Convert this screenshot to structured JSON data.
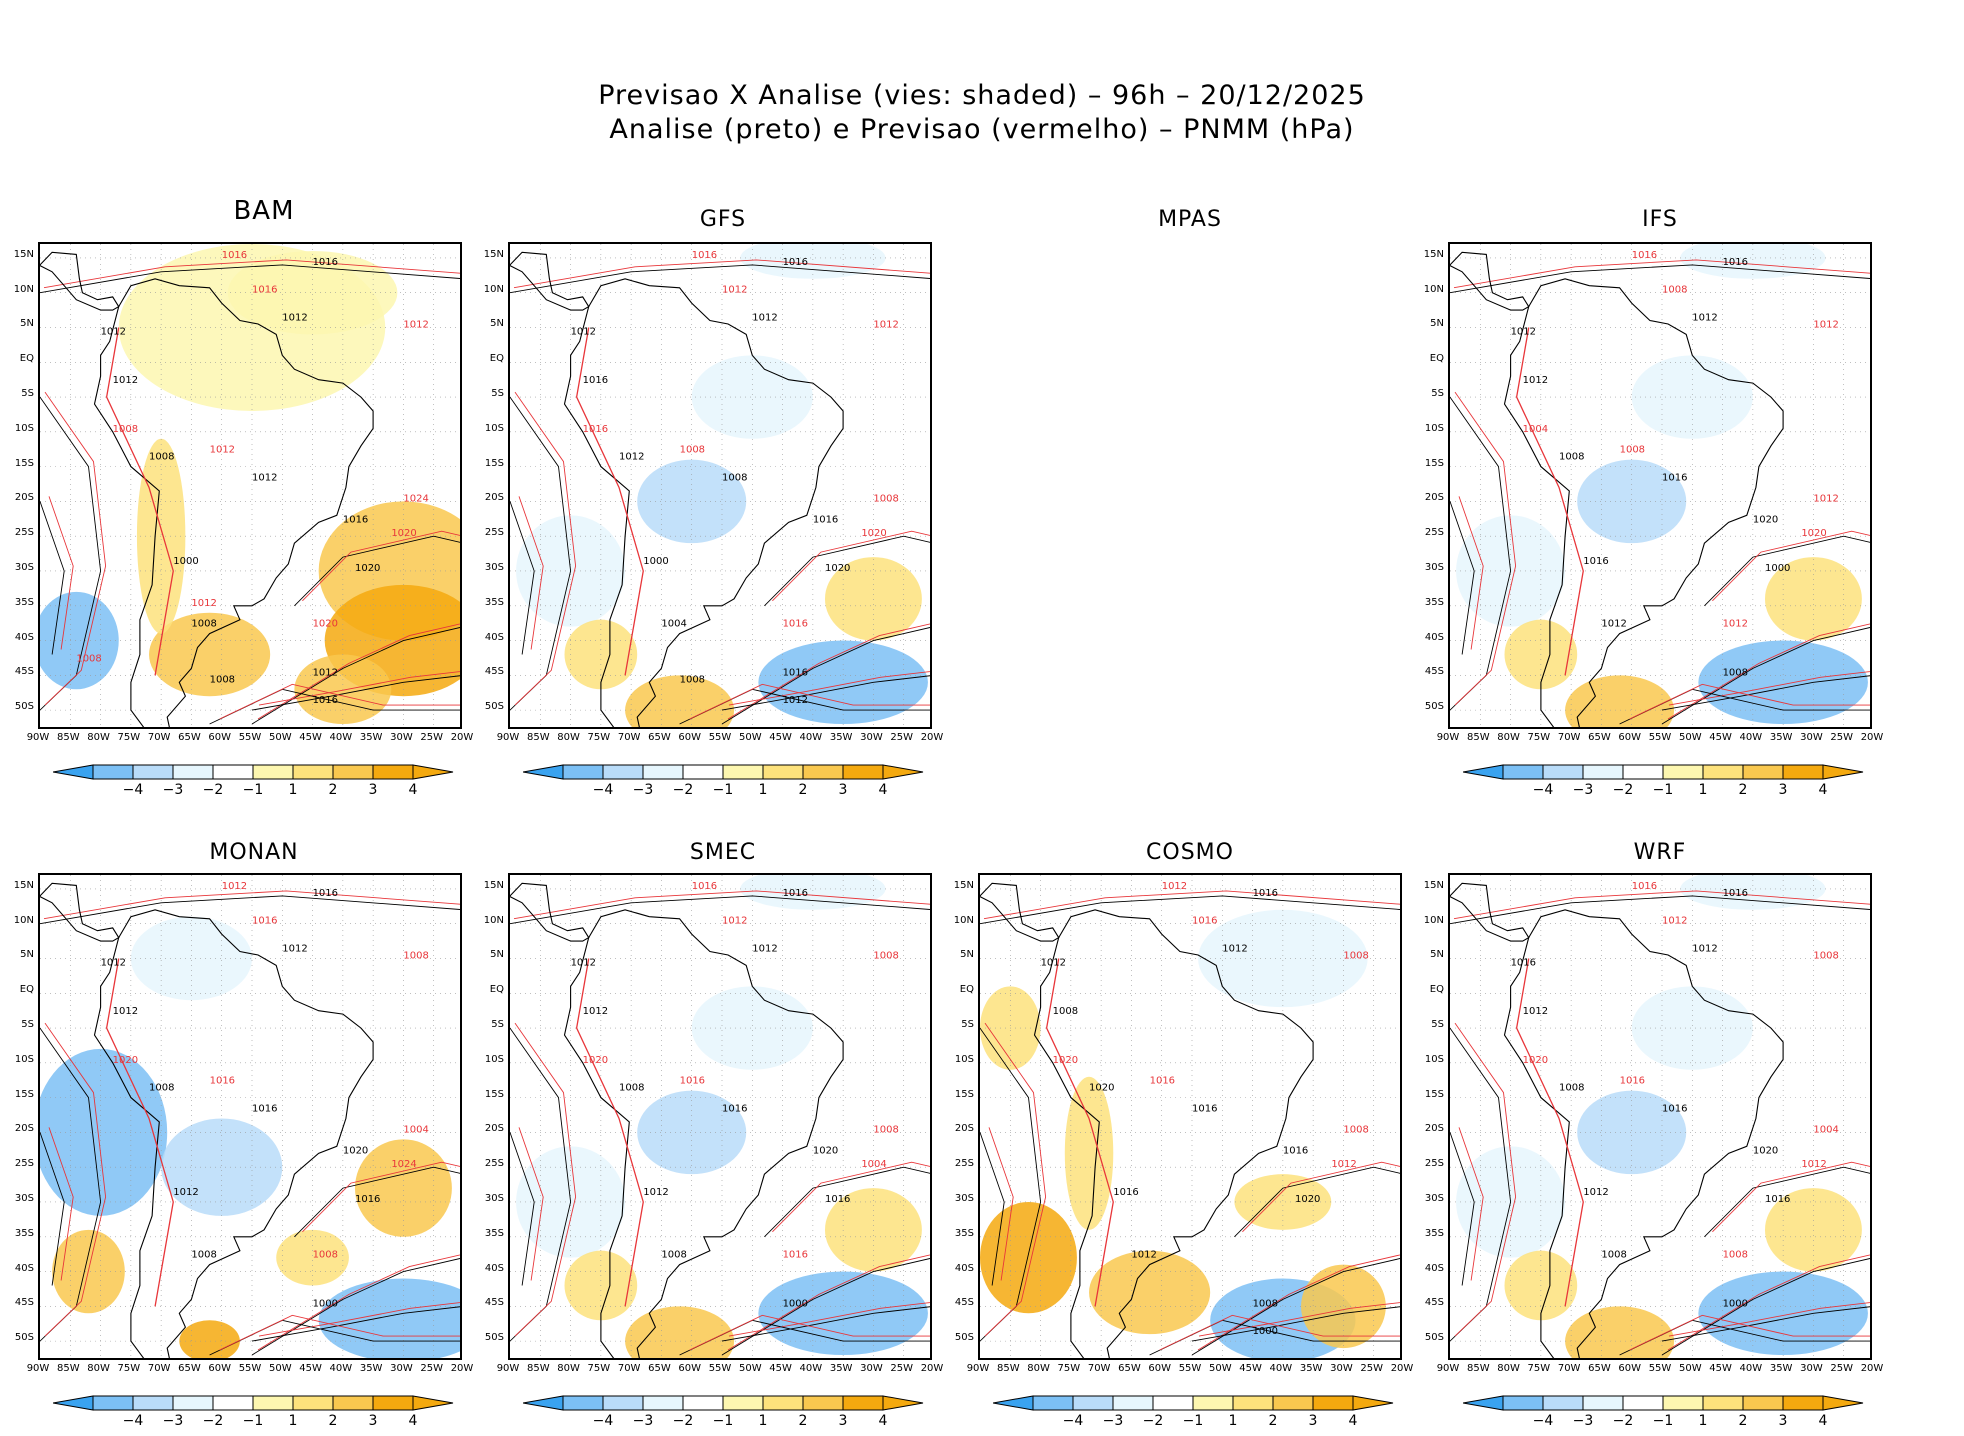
{
  "title": {
    "line1": "Previsao X Analise (vies: shaded) – 96h – 20/12/2025",
    "line2": "Analise (preto) e Previsao (vermelho) – PNMM (hPa)"
  },
  "lat_labels": [
    "15N",
    "10N",
    "5N",
    "EQ",
    "5S",
    "10S",
    "15S",
    "20S",
    "25S",
    "30S",
    "35S",
    "40S",
    "45S",
    "50S"
  ],
  "lon_labels": [
    "90W",
    "85W",
    "80W",
    "75W",
    "70W",
    "65W",
    "60W",
    "55W",
    "50W",
    "45W",
    "40W",
    "35W",
    "30W",
    "25W",
    "20W"
  ],
  "colorbar": {
    "labels": [
      "−4",
      "−3",
      "−2",
      "−1",
      "1",
      "2",
      "3",
      "4"
    ],
    "colors": [
      "#3aa3f0",
      "#7cc0f5",
      "#b9dcf9",
      "#e6f6fd",
      "#ffffff",
      "#fdf7b0",
      "#fde27c",
      "#f9c84f",
      "#f4a90f"
    ]
  },
  "colors": {
    "analysis": "#000000",
    "forecast": "#e8363a",
    "coast": "#000000"
  },
  "panels": [
    {
      "id": "BAM",
      "title": "BAM",
      "big": true,
      "has_map": true,
      "has_cbar": true,
      "bias": "warm",
      "labels_black": [
        "1016",
        "1012",
        "1012",
        "1012",
        "1008",
        "1012",
        "1016",
        "1020",
        "1000",
        "1008",
        "1012",
        "1016",
        "1008"
      ],
      "labels_red": [
        "1016",
        "1016",
        "1012",
        "1012",
        "1008",
        "1020",
        "1024",
        "1020",
        "1012",
        "1008"
      ]
    },
    {
      "id": "GFS",
      "title": "GFS",
      "big": false,
      "has_map": true,
      "has_cbar": true,
      "bias": "mixed",
      "labels_black": [
        "1016",
        "1012",
        "1012",
        "1016",
        "1012",
        "1008",
        "1016",
        "1020",
        "1000",
        "1004",
        "1016",
        "1012",
        "1008"
      ],
      "labels_red": [
        "1016",
        "1012",
        "1012",
        "1008",
        "1016",
        "1020",
        "1008",
        "1016"
      ]
    },
    {
      "id": "MPAS",
      "title": "MPAS",
      "big": false,
      "has_map": false,
      "has_cbar": false,
      "bias": "none",
      "labels_black": [],
      "labels_red": []
    },
    {
      "id": "IFS",
      "title": "IFS",
      "big": false,
      "has_map": true,
      "has_cbar": true,
      "bias": "mixed",
      "labels_black": [
        "1016",
        "1012",
        "1012",
        "1012",
        "1008",
        "1016",
        "1020",
        "1000",
        "1016",
        "1012",
        "1008"
      ],
      "labels_red": [
        "1016",
        "1008",
        "1012",
        "1008",
        "1004",
        "1020",
        "1012",
        "1012"
      ]
    },
    {
      "id": "MONAN",
      "title": "MONAN",
      "big": false,
      "has_map": true,
      "has_cbar": true,
      "bias": "cold",
      "labels_black": [
        "1016",
        "1012",
        "1012",
        "1012",
        "1008",
        "1016",
        "1020",
        "1016",
        "1012",
        "1008",
        "1000"
      ],
      "labels_red": [
        "1012",
        "1016",
        "1008",
        "1016",
        "1020",
        "1024",
        "1004",
        "1008"
      ]
    },
    {
      "id": "SMEC",
      "title": "SMEC",
      "big": false,
      "has_map": true,
      "has_cbar": true,
      "bias": "mixed",
      "labels_black": [
        "1016",
        "1012",
        "1012",
        "1012",
        "1008",
        "1016",
        "1020",
        "1016",
        "1012",
        "1008",
        "1000"
      ],
      "labels_red": [
        "1016",
        "1012",
        "1008",
        "1016",
        "1020",
        "1004",
        "1008",
        "1016"
      ]
    },
    {
      "id": "COSMO",
      "title": "COSMO",
      "big": false,
      "has_map": true,
      "has_cbar": true,
      "bias": "cosmo",
      "labels_black": [
        "1016",
        "1012",
        "1012",
        "1008",
        "1020",
        "1016",
        "1016",
        "1020",
        "1016",
        "1012",
        "1008",
        "1000"
      ],
      "labels_red": [
        "1012",
        "1016",
        "1008",
        "1016",
        "1020",
        "1012",
        "1008"
      ]
    },
    {
      "id": "WRF",
      "title": "WRF",
      "big": false,
      "has_map": true,
      "has_cbar": true,
      "bias": "mixed",
      "labels_black": [
        "1016",
        "1012",
        "1016",
        "1012",
        "1008",
        "1016",
        "1020",
        "1016",
        "1012",
        "1008",
        "1000"
      ],
      "labels_red": [
        "1016",
        "1012",
        "1008",
        "1016",
        "1020",
        "1012",
        "1004",
        "1008"
      ]
    }
  ]
}
